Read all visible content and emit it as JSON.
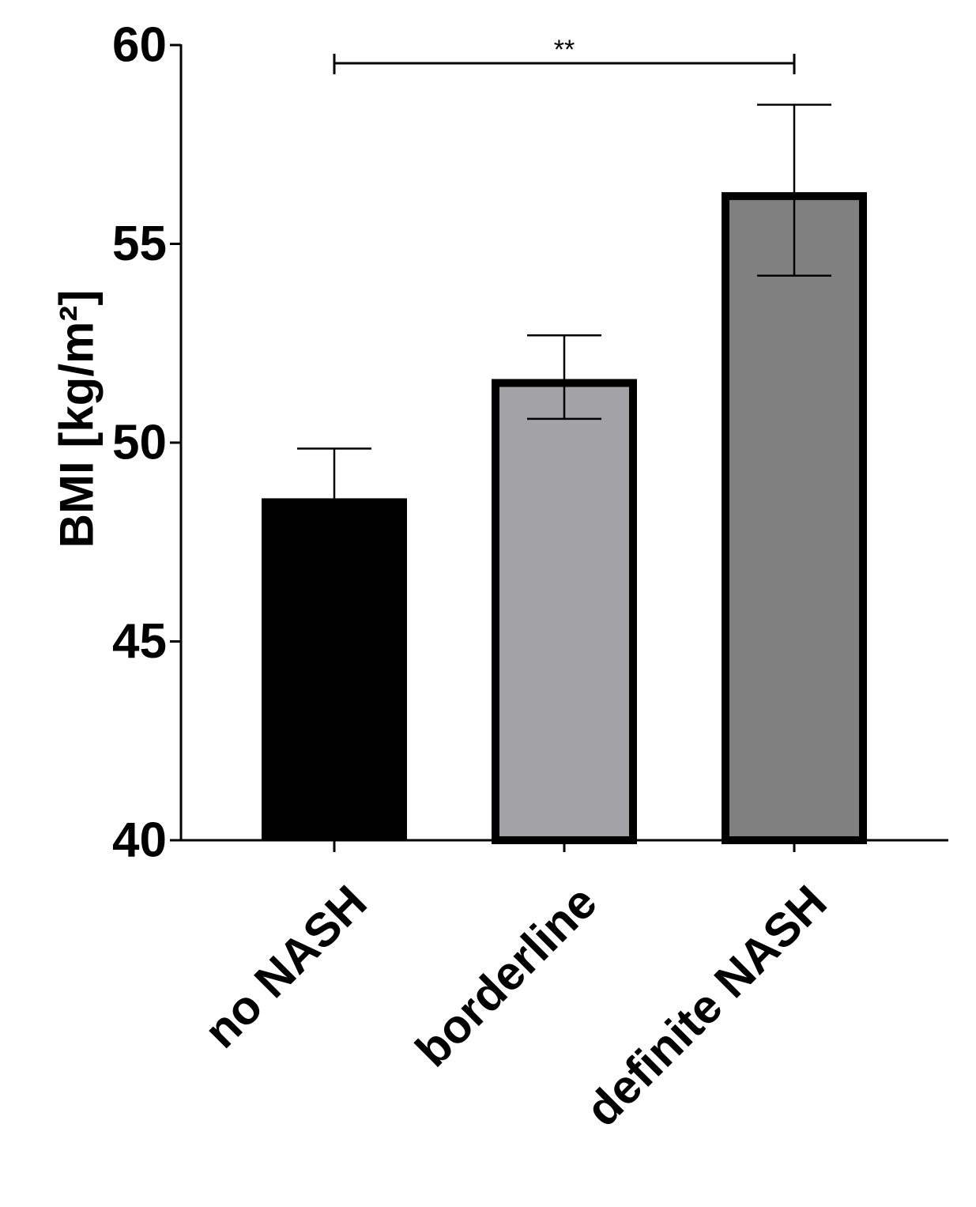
{
  "chart_data": {
    "type": "bar",
    "title": "",
    "xlabel": "",
    "ylabel": "BMI [kg/m²]",
    "ylim": [
      40,
      60
    ],
    "yticks": [
      "40",
      "45",
      "50",
      "55",
      "60"
    ],
    "categories": [
      "no NASH",
      "borderline",
      "definite NASH"
    ],
    "values": [
      48.6,
      51.6,
      56.3
    ],
    "error_bars": [
      {
        "lower": 48.6,
        "upper": 49.85
      },
      {
        "lower": 50.6,
        "upper": 52.7
      },
      {
        "lower": 54.2,
        "upper": 58.5
      }
    ],
    "bar_fill_colors": [
      "#000000",
      "#a3a3a7",
      "#808080"
    ],
    "bar_edge_color": "#000000",
    "grid": false,
    "legend": "none",
    "significance": [
      {
        "from": "no NASH",
        "to": "definite NASH",
        "label": "**"
      }
    ]
  }
}
